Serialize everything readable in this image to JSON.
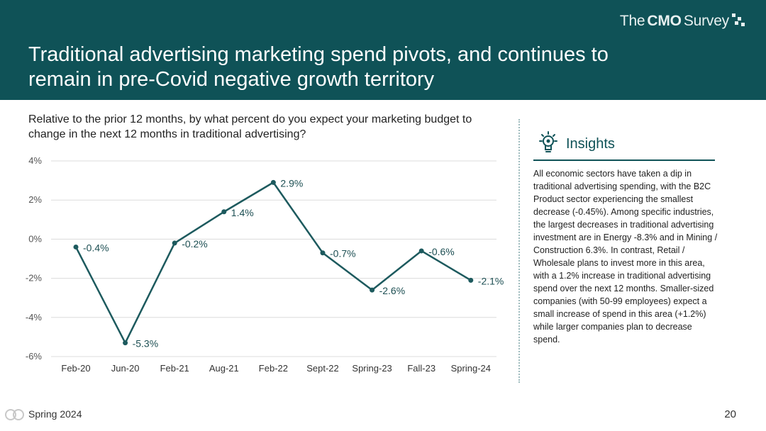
{
  "header": {
    "brand_the": "The",
    "brand_cmo": "CMO",
    "brand_survey": "Survey",
    "title": "Traditional advertising marketing spend pivots, and continues to remain in pre-Covid negative growth territory"
  },
  "question": "Relative to the prior 12 months, by what percent do you expect your marketing budget to change in the next 12 months in traditional advertising?",
  "insights": {
    "title": "Insights",
    "body": "All economic sectors have taken a dip in traditional advertising spending, with the B2C Product sector experiencing the smallest decrease (-0.45%). Among specific industries, the largest decreases in traditional advertising investment are in Energy -8.3% and in Mining / Construction 6.3%. In contrast, Retail / Wholesale plans to invest more in this area, with a 1.2% increase in traditional advertising spend over the next 12 months. Smaller-sized companies (with 50-99 employees) expect a small increase of spend in this area (+1.2%) while larger companies plan to decrease spend."
  },
  "footer": {
    "left": "Spring 2024",
    "page": "20"
  },
  "colors": {
    "brand": "#0f5257",
    "line": "#1d5a5e"
  },
  "chart_data": {
    "type": "line",
    "title": "",
    "xlabel": "",
    "ylabel": "",
    "categories": [
      "Feb-20",
      "Jun-20",
      "Feb-21",
      "Aug-21",
      "Feb-22",
      "Sept-22",
      "Spring-23",
      "Fall-23",
      "Spring-24"
    ],
    "values": [
      -0.4,
      -5.3,
      -0.2,
      1.4,
      2.9,
      -0.7,
      -2.6,
      -0.6,
      -2.1
    ],
    "data_labels": [
      "-0.4%",
      "-5.3%",
      "-0.2%",
      "1.4%",
      "2.9%",
      "-0.7%",
      "-2.6%",
      "-0.6%",
      "-2.1%"
    ],
    "y_ticks": [
      4,
      2,
      0,
      -2,
      -4,
      -6
    ],
    "y_tick_labels": [
      "4%",
      "2%",
      "0%",
      "-2%",
      "-4%",
      "-6%"
    ],
    "ylim": [
      -6,
      4
    ],
    "grid": true
  }
}
